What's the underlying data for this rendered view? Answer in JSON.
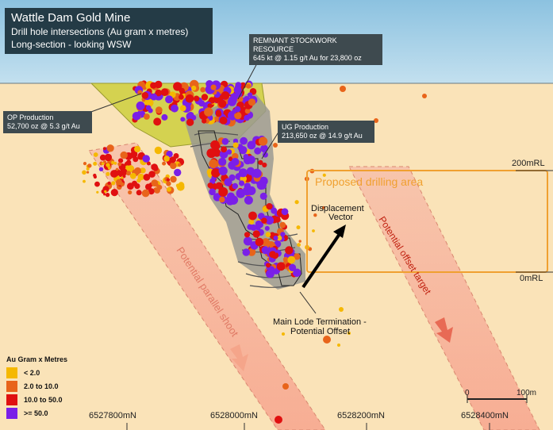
{
  "title": {
    "line1": "Wattle Dam Gold Mine",
    "line2": "Drill hole intersections (Au gram x metres)",
    "line3": "Long-section - looking WSW"
  },
  "callouts": {
    "remnant_line1": "REMNANT STOCKWORK",
    "remnant_line2": "RESOURCE",
    "remnant_line3": "645 kt @ 1.15 g/t Au for 23,800 oz",
    "op_line1": "OP Production",
    "op_line2": "52,700 oz @ 5.3 g/t Au",
    "ug_line1": "UG Production",
    "ug_line2": "213,650 oz @ 14.9 g/t Au"
  },
  "labels": {
    "proposed_drilling": "Proposed drilling area",
    "displacement_line1": "Displacement",
    "displacement_line2": "Vector",
    "main_lode_line1": "Main Lode Termination -",
    "main_lode_line2": "Potential Offset",
    "parallel_shoot": "Potential parallel shoot",
    "offset_target": "Potential offset target"
  },
  "elevations": {
    "rl200": "200mRL",
    "rl0": "0mRL"
  },
  "eastings": [
    "6527800mN",
    "6528000mN",
    "6528200mN",
    "6528400mN"
  ],
  "scale_bar": {
    "start": "0",
    "end": "100m"
  },
  "legend": {
    "title": "Au Gram x Metres",
    "items": [
      {
        "label": "< 2.0",
        "color": "#f5b800"
      },
      {
        "label": "2.0 to 10.0",
        "color": "#e8641a"
      },
      {
        "label": "10.0 to 50.0",
        "color": "#e01010"
      },
      {
        "label": ">= 50.0",
        "color": "#7a1fe8"
      }
    ]
  },
  "colors": {
    "sky": "#a9d0e6",
    "ground": "#fae3b8",
    "corridor": "#f7b8a4",
    "drilling_box": "#f0a030",
    "arrow": "#000000"
  }
}
